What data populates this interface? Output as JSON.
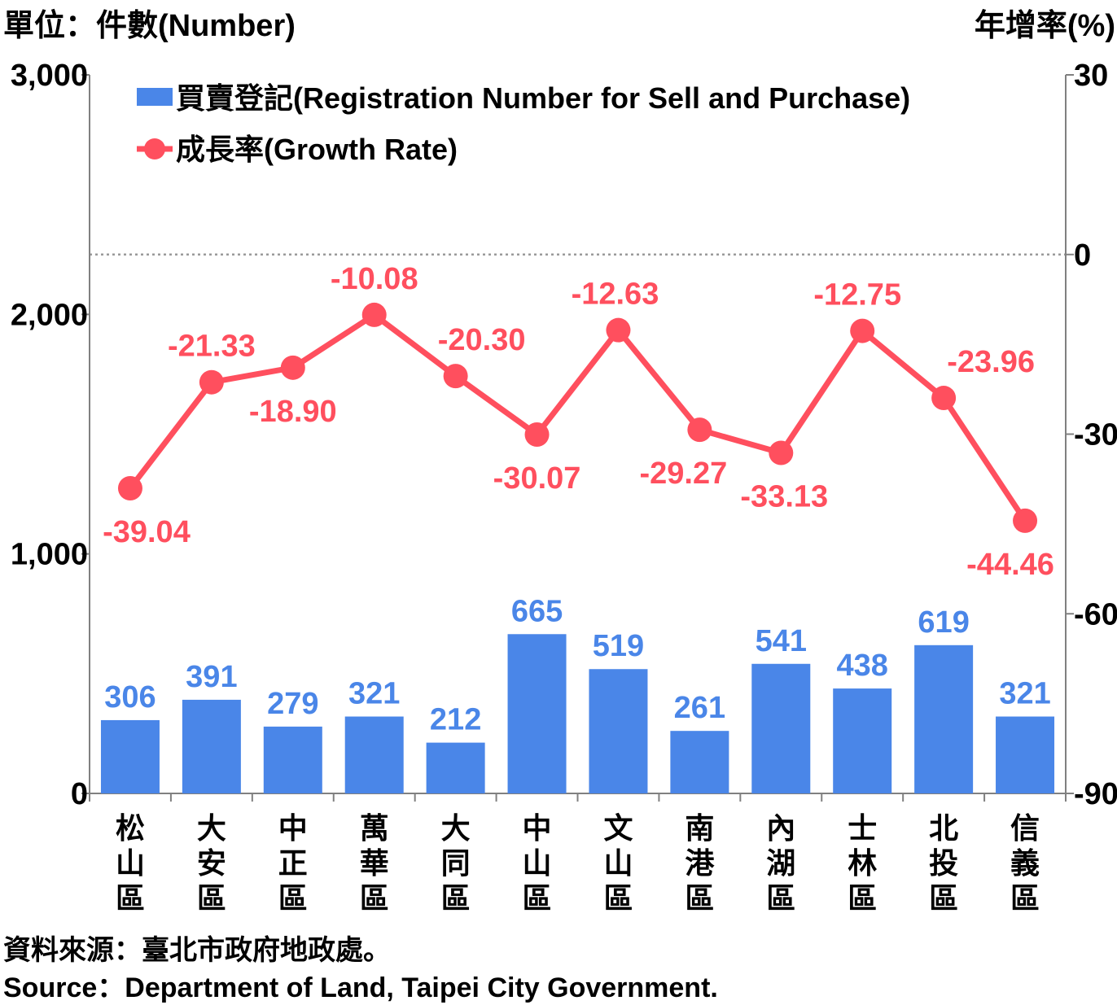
{
  "header": {
    "left_unit": "單位：件數(Number)",
    "right_unit": "年增率(%)"
  },
  "footer": {
    "source_zh": "資料來源：臺北市政府地政處。",
    "source_en": "Source：Department of Land, Taipei City Government."
  },
  "colors": {
    "bar": "#4a86e8",
    "line": "#ff4f5e",
    "axis": "#808080"
  },
  "chart_data": {
    "type": "bar",
    "categories": [
      "松山區",
      "大安區",
      "中正區",
      "萬華區",
      "大同區",
      "中山區",
      "文山區",
      "南港區",
      "內湖區",
      "士林區",
      "北投區",
      "信義區"
    ],
    "series": [
      {
        "name": "買賣登記(Registration Number for Sell and Purchase)",
        "type": "bar",
        "axis": "left",
        "values": [
          306,
          391,
          279,
          321,
          212,
          665,
          519,
          261,
          541,
          438,
          619,
          321
        ]
      },
      {
        "name": "成長率(Growth Rate)",
        "type": "line",
        "axis": "right",
        "values": [
          -39.04,
          -21.33,
          -18.9,
          -10.08,
          -20.3,
          -30.07,
          -12.63,
          -29.27,
          -33.13,
          -12.75,
          -23.96,
          -44.46
        ]
      }
    ],
    "y_left": {
      "ylim": [
        0,
        3000
      ],
      "ticks": [
        "0",
        "1,000",
        "2,000",
        "3,000"
      ]
    },
    "y_right": {
      "ylim": [
        -90,
        30
      ],
      "ticks": [
        "-90",
        "-60",
        "-30",
        "0",
        "30"
      ]
    },
    "rate_labels": [
      "-39.04",
      "-21.33",
      "-18.90",
      "-10.08",
      "-20.30",
      "-30.07",
      "-12.63",
      "-29.27",
      "-33.13",
      "-12.75",
      "-23.96",
      "-44.46"
    ],
    "zero_reference_line": "dotted",
    "legend": "top-left"
  }
}
